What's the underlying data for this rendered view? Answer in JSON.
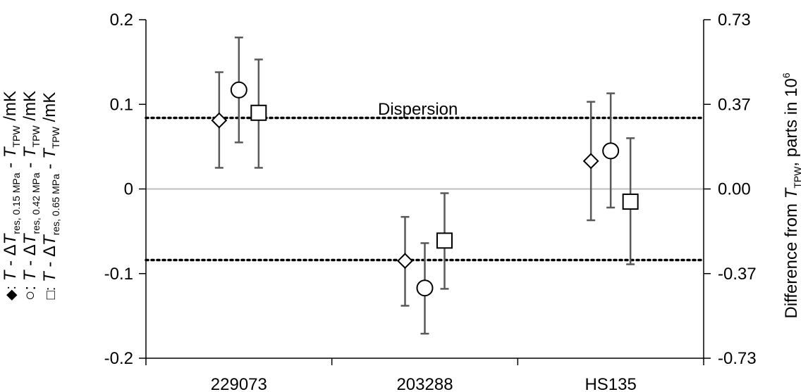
{
  "chart_data": {
    "type": "scatter",
    "categories": [
      "229073",
      "203288",
      "HS135"
    ],
    "ylim": [
      -0.2,
      0.2
    ],
    "yticks": [
      "0.2",
      "0.1",
      "0",
      "-0.1",
      "-0.2"
    ],
    "y2ticks": [
      "0.73",
      "0.37",
      "0.00",
      "-0.37",
      "-0.73"
    ],
    "y2_values": [
      0.73,
      0.37,
      0.0,
      -0.37,
      -0.73
    ],
    "ylabel": {
      "diamond_marker": "◆:",
      "circle_marker": "○:",
      "square_marker": "□:",
      "T": "T",
      "minus_delta": " - Δ",
      "Tres": "T",
      "res_sub": "res, 0.15 MPa",
      "res_sub_2": "res, 0.42 MPa",
      "res_sub_3": "res, 0.65 MPa",
      "minus": " - ",
      "Ttpw": "T",
      "tpw_sub": "TPW",
      "unit": " /mK"
    },
    "y2label": {
      "prefix": "Difference from ",
      "T": "T",
      "tpw_sub": "TPW",
      "suffix": ", parts in 10",
      "sup": "6"
    },
    "annotation": "Dispersion",
    "dispersion_lines": [
      0.084,
      -0.084
    ],
    "grid": false,
    "series": [
      {
        "marker": "diamond",
        "values": [
          0.081,
          -0.085,
          0.033
        ],
        "err_low": [
          0.025,
          -0.138,
          -0.037
        ],
        "err_high": [
          0.138,
          -0.033,
          0.103
        ]
      },
      {
        "marker": "circle",
        "values": [
          0.117,
          -0.117,
          0.045
        ],
        "err_low": [
          0.055,
          -0.171,
          -0.022
        ],
        "err_high": [
          0.179,
          -0.064,
          0.113
        ]
      },
      {
        "marker": "square",
        "values": [
          0.09,
          -0.061,
          -0.015
        ],
        "err_low": [
          0.025,
          -0.118,
          -0.089
        ],
        "err_high": [
          0.153,
          -0.005,
          0.06
        ]
      }
    ]
  }
}
